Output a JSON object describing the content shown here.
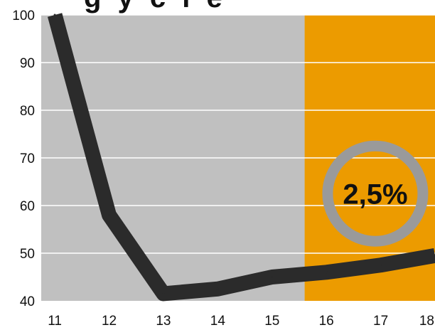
{
  "title_fragment": "g y c l e",
  "chart_data": {
    "type": "line",
    "x": [
      11,
      12,
      13,
      14,
      15,
      16,
      17,
      18
    ],
    "series": [
      {
        "values": [
          100,
          58,
          41.5,
          42.5,
          45,
          46,
          47.5,
          49.5
        ]
      }
    ],
    "xticks": [
      "11",
      "12",
      "13",
      "14",
      "15",
      "16",
      "17",
      "18"
    ],
    "yticks": [
      "40",
      "50",
      "60",
      "70",
      "80",
      "90",
      "100"
    ],
    "xlim": [
      10.75,
      18
    ],
    "ylim": [
      40,
      100
    ],
    "grid": true,
    "highlight_region": {
      "from_x": 15.6,
      "to_x": 18,
      "color": "#ec9b00"
    },
    "plot_background": "#c0c0c0",
    "line_color": "#2b2b2b",
    "annotation": {
      "text": "2,5%",
      "x": 16.9,
      "y": 62.5,
      "ring_color": "#9a9a9a"
    }
  }
}
